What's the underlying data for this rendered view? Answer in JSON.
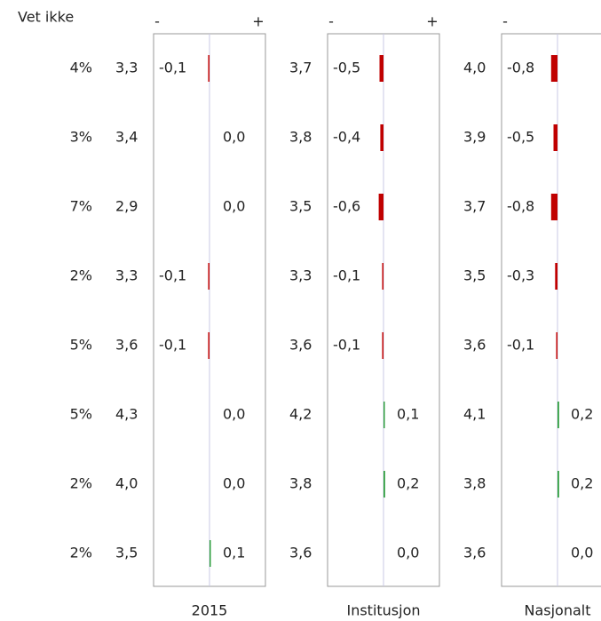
{
  "chart_data": {
    "type": "diverging-bar",
    "vet_ikke_label": "Vet ikke",
    "vet_ikke": {
      "values": [
        4,
        3,
        7,
        2,
        5,
        5,
        2,
        2
      ],
      "value_labels": [
        "4%",
        "3%",
        "7%",
        "2%",
        "5%",
        "5%",
        "2%",
        "2%"
      ]
    },
    "colors": {
      "negative": "#c00000",
      "positive": "#2e9e3e"
    },
    "panels": [
      {
        "name": "2015",
        "signs": [
          "-",
          "+"
        ],
        "means": {
          "values": [
            3.3,
            3.4,
            2.9,
            3.3,
            3.6,
            4.3,
            4.0,
            3.5
          ],
          "value_labels": [
            "3,3",
            "3,4",
            "2,9",
            "3,3",
            "3,6",
            "4,3",
            "4,0",
            "3,5"
          ]
        },
        "values": [
          -0.1,
          0.0,
          0.0,
          -0.1,
          -0.1,
          0.0,
          0.0,
          0.1
        ],
        "value_labels": [
          "-0,1",
          "0,0",
          "0,0",
          "-0,1",
          "-0,1",
          "0,0",
          "0,0",
          "0,1"
        ]
      },
      {
        "name": "Institusjon",
        "signs": [
          "-",
          "+"
        ],
        "means": {
          "values": [
            3.7,
            3.8,
            3.5,
            3.3,
            3.6,
            4.2,
            3.8,
            3.6
          ],
          "value_labels": [
            "3,7",
            "3,8",
            "3,5",
            "3,3",
            "3,6",
            "4,2",
            "3,8",
            "3,6"
          ]
        },
        "values": [
          -0.5,
          -0.4,
          -0.6,
          -0.1,
          -0.1,
          0.1,
          0.2,
          0.0
        ],
        "value_labels": [
          "-0,5",
          "-0,4",
          "-0,6",
          "-0,1",
          "-0,1",
          "0,1",
          "0,2",
          "0,0"
        ]
      },
      {
        "name": "Nasjonalt",
        "signs": [
          "-"
        ],
        "means": {
          "values": [
            4.0,
            3.9,
            3.7,
            3.5,
            3.6,
            4.1,
            3.8,
            3.6
          ],
          "value_labels": [
            "4,0",
            "3,9",
            "3,7",
            "3,5",
            "3,6",
            "4,1",
            "3,8",
            "3,6"
          ]
        },
        "values": [
          -0.8,
          -0.5,
          -0.8,
          -0.3,
          -0.1,
          0.2,
          0.2,
          0.0
        ],
        "value_labels": [
          "-0,8",
          "-0,5",
          "-0,8",
          "-0,3",
          "-0,1",
          "0,2",
          "0,2",
          "0,0"
        ]
      }
    ]
  }
}
